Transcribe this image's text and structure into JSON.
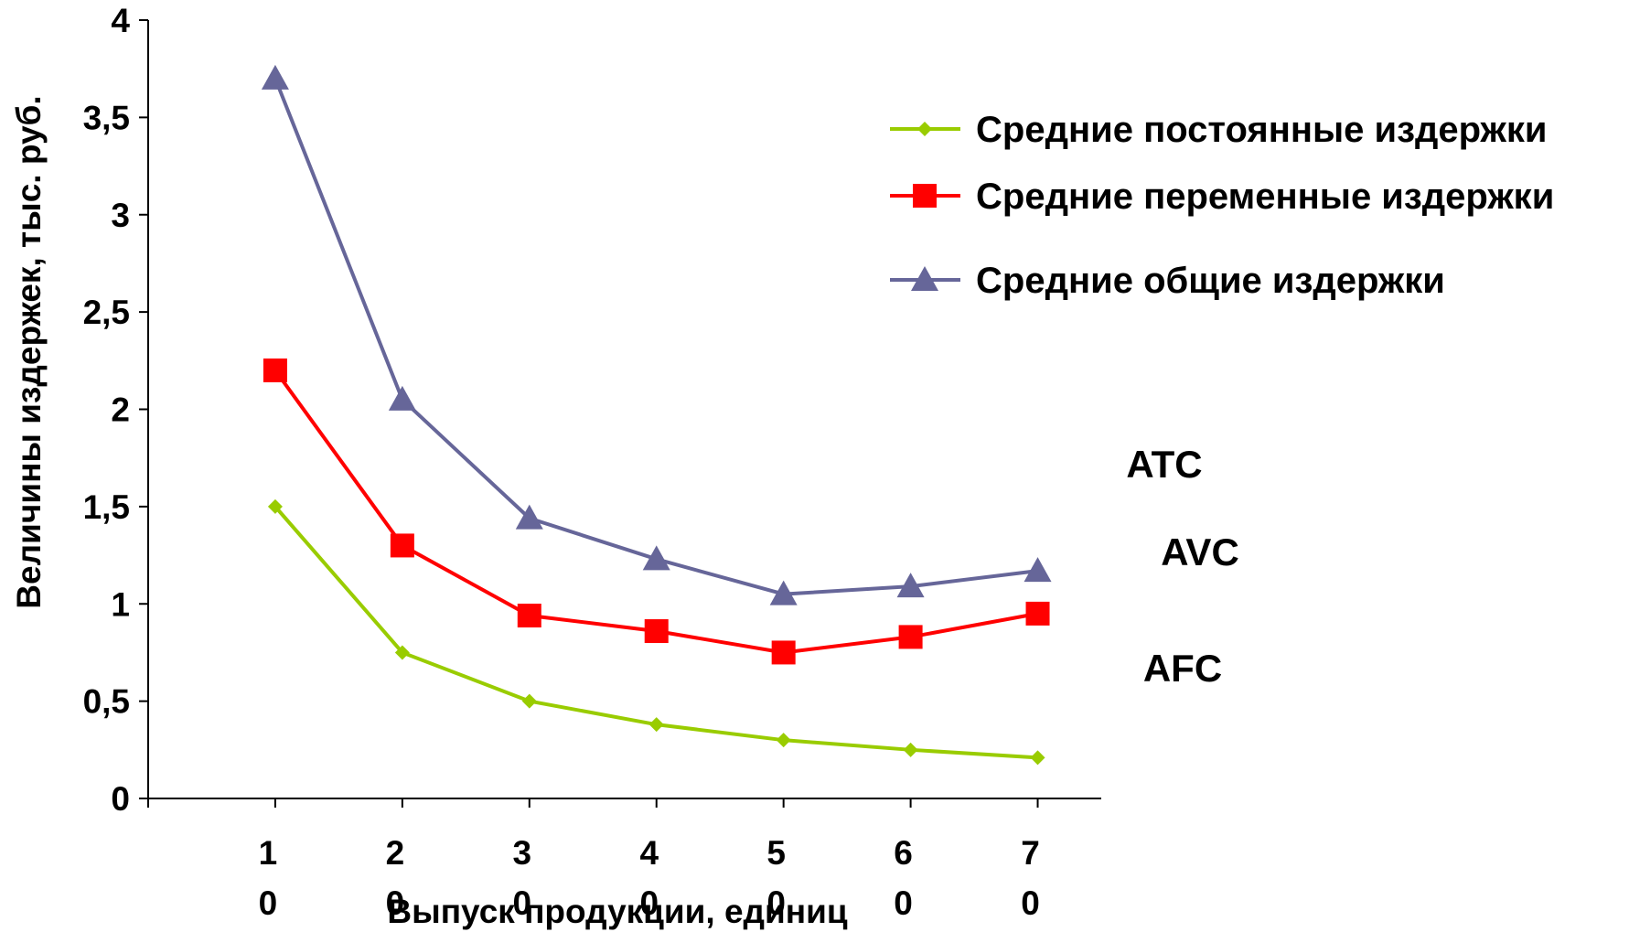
{
  "chart_data": {
    "type": "line",
    "title": "",
    "xlabel": "Выпуск продукции, единиц",
    "ylabel": "Величины издержек, тыс. руб.",
    "categories": [
      "10",
      "20",
      "30",
      "40",
      "50",
      "60",
      "70"
    ],
    "category_labels": [
      [
        "1",
        "0"
      ],
      [
        "2",
        "0"
      ],
      [
        "3",
        "0"
      ],
      [
        "4",
        "0"
      ],
      [
        "5",
        "0"
      ],
      [
        "6",
        "0"
      ],
      [
        "7",
        "0"
      ]
    ],
    "ylim": [
      0,
      4
    ],
    "yticks": [
      0,
      0.5,
      1,
      1.5,
      2,
      2.5,
      3,
      3.5,
      4
    ],
    "ytick_labels": [
      "0",
      "0,5",
      "1",
      "1,5",
      "2",
      "2,5",
      "3",
      "3,5",
      "4"
    ],
    "grid": false,
    "legend_position": "top-right",
    "series": [
      {
        "name": "Средние постоянные издержки",
        "label": "AFC",
        "color": "#99cc00",
        "marker": "diamond",
        "values": [
          1.5,
          0.75,
          0.5,
          0.38,
          0.3,
          0.25,
          0.21
        ]
      },
      {
        "name": "Средние переменные издержки",
        "label": "AVC",
        "color": "#ff0000",
        "marker": "square",
        "values": [
          2.2,
          1.3,
          0.94,
          0.86,
          0.75,
          0.83,
          0.95
        ]
      },
      {
        "name": "Средние общие издержки",
        "label": "ATC",
        "color": "#666699",
        "marker": "triangle",
        "values": [
          3.7,
          2.05,
          1.44,
          1.23,
          1.05,
          1.09,
          1.17
        ]
      }
    ]
  }
}
